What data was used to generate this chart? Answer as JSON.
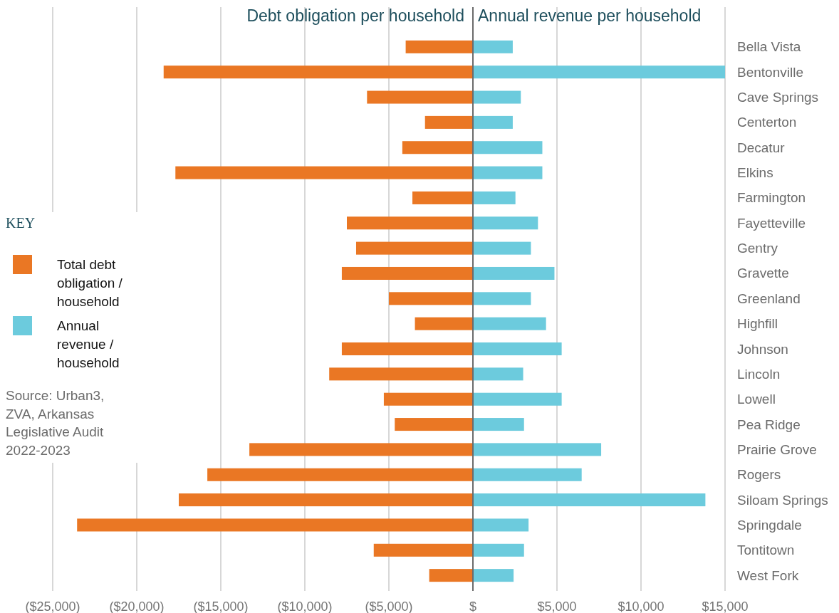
{
  "chart_data": {
    "type": "bar",
    "orientation": "horizontal",
    "stacked": true,
    "categories": [
      "Bella Vista",
      "Bentonville",
      "Cave Springs",
      "Centerton",
      "Decatur",
      "Elkins",
      "Farmington",
      "Fayetteville",
      "Gentry",
      "Gravette",
      "Greenland",
      "Highfill",
      "Johnson",
      "Lincoln",
      "Lowell",
      "Pea Ridge",
      "Prairie Grove",
      "Rogers",
      "Siloam Springs",
      "Springdale",
      "Tontitown",
      "West Fork"
    ],
    "series": [
      {
        "name": "Total debt obligation / household",
        "color": "#ea7724",
        "values": [
          -4000,
          -18400,
          -6300,
          -2850,
          -4200,
          -17700,
          -3600,
          -7500,
          -6950,
          -7800,
          -5000,
          -3450,
          -7800,
          -8550,
          -5300,
          -4650,
          -13300,
          -15800,
          -17500,
          -23550,
          -5900,
          -2600
        ]
      },
      {
        "name": "Annual revenue / household",
        "color": "#6ccbdd",
        "values": [
          2370,
          15000,
          2850,
          2370,
          4130,
          4130,
          2530,
          3870,
          3450,
          4850,
          3450,
          4350,
          5280,
          2990,
          5280,
          3040,
          7630,
          6470,
          13830,
          3310,
          3040,
          2420
        ]
      }
    ],
    "xlim": [
      -25000,
      15000
    ],
    "xticks": [
      {
        "value": -25000,
        "label": "($25,000)"
      },
      {
        "value": -20000,
        "label": "($20,000)"
      },
      {
        "value": -15000,
        "label": "($15,000)"
      },
      {
        "value": -10000,
        "label": "($10,000)"
      },
      {
        "value": -5000,
        "label": "($5,000)"
      },
      {
        "value": 0,
        "label": "$"
      },
      {
        "value": 5000,
        "label": "$5,000"
      },
      {
        "value": 10000,
        "label": "$10,000"
      },
      {
        "value": 15000,
        "label": "$15,000"
      }
    ],
    "grid": "x",
    "legend": "left",
    "legend_title": "KEY",
    "annotations": [
      "Debt obligation per household",
      "Annual revenue per household",
      "Source: Urban3, ZVA, Arkansas Legislative Audit 2022-2023"
    ]
  }
}
